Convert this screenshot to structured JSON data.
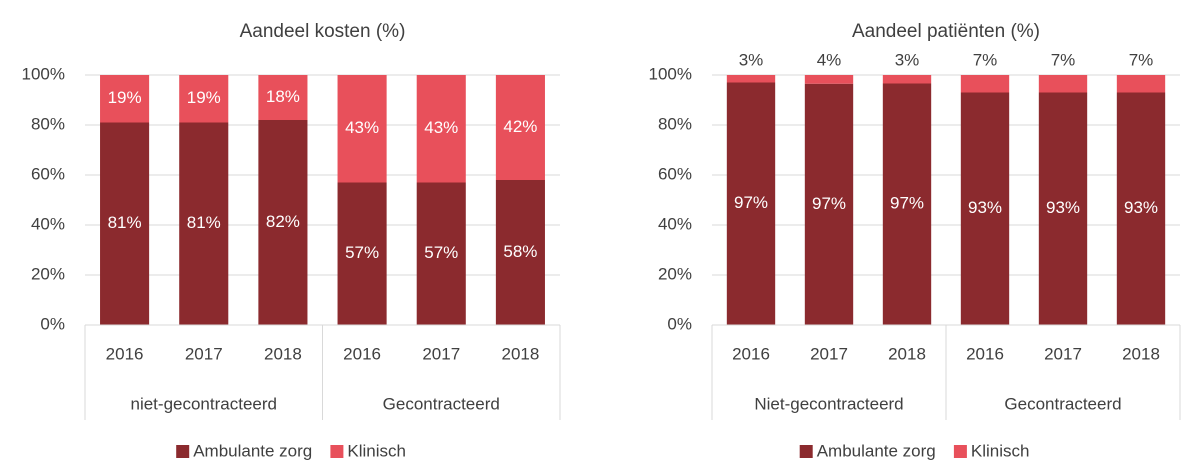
{
  "chart_data": [
    {
      "type": "stacked_bar",
      "title": "Aandeel kosten (%)",
      "categories": [
        "2016",
        "2017",
        "2018",
        "2016",
        "2017",
        "2018"
      ],
      "groups": [
        {
          "name": "niet-gecontracteerd",
          "size": 3
        },
        {
          "name": "Gecontracteerd",
          "size": 3
        }
      ],
      "series": [
        {
          "name": "Ambulante zorg",
          "color": "#8b2a2e",
          "values": [
            81,
            81,
            82,
            57,
            57,
            58
          ],
          "value_labels": [
            "81%",
            "81%",
            "82%",
            "57%",
            "57%",
            "58%"
          ]
        },
        {
          "name": "Klinisch",
          "color": "#e8505b",
          "values": [
            19,
            19,
            18,
            43,
            43,
            42
          ],
          "value_labels": [
            "19%",
            "19%",
            "18%",
            "43%",
            "43%",
            "42%"
          ]
        }
      ],
      "ylim": [
        0,
        100
      ],
      "yticks": [
        {
          "value": 0,
          "label": "0%"
        },
        {
          "value": 20,
          "label": "20%"
        },
        {
          "value": 40,
          "label": "40%"
        },
        {
          "value": 60,
          "label": "60%"
        },
        {
          "value": 80,
          "label": "80%"
        },
        {
          "value": 100,
          "label": "100%"
        }
      ],
      "grid": true,
      "legend": "bottom"
    },
    {
      "type": "stacked_bar",
      "title": "Aandeel patiënten (%)",
      "categories": [
        "2016",
        "2017",
        "2018",
        "2016",
        "2017",
        "2018"
      ],
      "groups": [
        {
          "name": "Niet-gecontracteerd",
          "size": 3
        },
        {
          "name": "Gecontracteerd",
          "size": 3
        }
      ],
      "series": [
        {
          "name": "Ambulante zorg",
          "color": "#8b2a2e",
          "values": [
            97,
            96.5,
            96.6,
            93,
            93,
            93
          ],
          "value_labels": [
            "97%",
            "97%",
            "97%",
            "93%",
            "93%",
            "93%"
          ]
        },
        {
          "name": "Klinisch",
          "color": "#e8505b",
          "values": [
            3,
            3.5,
            3.4,
            7,
            7,
            7
          ],
          "value_labels": [
            "3%",
            "4%",
            "3%",
            "7%",
            "7%",
            "7%"
          ]
        }
      ],
      "ylim": [
        0,
        100
      ],
      "yticks": [
        {
          "value": 0,
          "label": "0%"
        },
        {
          "value": 20,
          "label": "20%"
        },
        {
          "value": 40,
          "label": "40%"
        },
        {
          "value": 60,
          "label": "60%"
        },
        {
          "value": 80,
          "label": "80%"
        },
        {
          "value": 100,
          "label": "100%"
        }
      ],
      "grid": true,
      "legend": "bottom"
    }
  ]
}
